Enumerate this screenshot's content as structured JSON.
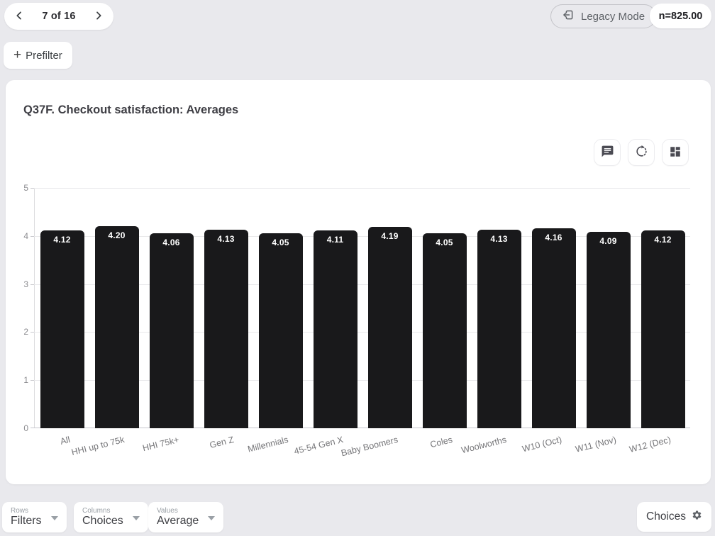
{
  "topbar": {
    "pager": {
      "label": "7 of 16"
    },
    "legacy_button": {
      "label": "Legacy Mode"
    },
    "n_badge": {
      "label": "n=825.00"
    },
    "prefilter_button": {
      "plus": "+",
      "label": "Prefilter"
    }
  },
  "card": {
    "title": "Q37F. Checkout satisfaction: Averages",
    "toolbar_icons": [
      "comment-icon",
      "rotate-icon",
      "dashboard-icon"
    ]
  },
  "chart_data": {
    "type": "bar",
    "title": "Q37F. Checkout satisfaction: Averages",
    "categories": [
      "All",
      "HHI up to 75k",
      "HHI 75k+",
      "Gen Z",
      "Millennials",
      "45-54 Gen X",
      "Baby Boomers",
      "Coles",
      "Woolworths",
      "W10 (Oct)",
      "W11 (Nov)",
      "W12 (Dec)"
    ],
    "values": [
      4.12,
      4.2,
      4.06,
      4.13,
      4.05,
      4.11,
      4.19,
      4.05,
      4.13,
      4.16,
      4.09,
      4.12
    ],
    "ylim": [
      0,
      5
    ],
    "yticks": [
      0,
      1,
      2,
      3,
      4,
      5
    ],
    "bar_color": "#19191b",
    "value_label_color": "#ffffff",
    "grid": true,
    "legend": "none",
    "xlabel": "",
    "ylabel": ""
  },
  "footer": {
    "dropdowns": [
      {
        "label": "Rows",
        "value": "Filters"
      },
      {
        "label": "Columns",
        "value": "Choices"
      },
      {
        "label": "Values",
        "value": "Average"
      }
    ],
    "choices_button": {
      "label": "Choices"
    }
  },
  "colors": {
    "page_bg": "#e9e9ed",
    "card_bg": "#ffffff",
    "bar": "#19191b"
  }
}
